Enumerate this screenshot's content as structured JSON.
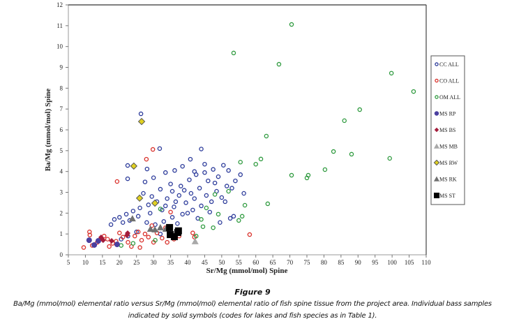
{
  "chart_data": {
    "type": "scatter",
    "title": "",
    "xlabel": "Sr/Mg (mmol/mol) Spine",
    "ylabel": "Ba/Mg (mmol/mol) Spine",
    "xlim": [
      5,
      110
    ],
    "ylim": [
      0,
      12
    ],
    "xticks": [
      5,
      10,
      15,
      20,
      25,
      30,
      35,
      40,
      45,
      50,
      55,
      60,
      65,
      70,
      75,
      80,
      85,
      90,
      95,
      100,
      105,
      110
    ],
    "yticks": [
      0,
      1,
      2,
      3,
      4,
      5,
      6,
      7,
      8,
      9,
      10,
      11,
      12
    ],
    "grid": false,
    "legend_position": "right",
    "series": [
      {
        "name": "CC ALL",
        "marker": "open-circle",
        "color": "#2b3a9a",
        "points": [
          [
            26.3,
            6.77
          ],
          [
            31.8,
            5.1
          ],
          [
            22.4,
            4.29
          ],
          [
            28.1,
            4.12
          ],
          [
            22.4,
            3.65
          ],
          [
            40.8,
            4.59
          ],
          [
            44.0,
            5.08
          ],
          [
            38.5,
            4.25
          ],
          [
            36.2,
            4.05
          ],
          [
            33.5,
            3.95
          ],
          [
            30.0,
            3.7
          ],
          [
            27.5,
            3.5
          ],
          [
            35.0,
            3.4
          ],
          [
            38.0,
            3.3
          ],
          [
            40.5,
            3.6
          ],
          [
            42.5,
            3.85
          ],
          [
            45.0,
            3.95
          ],
          [
            47.5,
            4.1
          ],
          [
            50.5,
            4.3
          ],
          [
            52.0,
            4.05
          ],
          [
            49.0,
            3.75
          ],
          [
            46.0,
            3.55
          ],
          [
            43.5,
            3.2
          ],
          [
            41.0,
            2.95
          ],
          [
            37.5,
            2.85
          ],
          [
            34.0,
            2.7
          ],
          [
            31.0,
            2.55
          ],
          [
            28.5,
            2.4
          ],
          [
            26.0,
            2.25
          ],
          [
            24.0,
            2.1
          ],
          [
            22.0,
            1.95
          ],
          [
            20.0,
            1.8
          ],
          [
            18.5,
            1.7
          ],
          [
            17.5,
            1.45
          ],
          [
            21.0,
            1.55
          ],
          [
            23.0,
            1.65
          ],
          [
            25.5,
            1.85
          ],
          [
            29.0,
            2.0
          ],
          [
            32.5,
            2.15
          ],
          [
            36.0,
            2.3
          ],
          [
            39.5,
            2.5
          ],
          [
            42.0,
            2.7
          ],
          [
            45.5,
            2.85
          ],
          [
            48.5,
            3.05
          ],
          [
            51.5,
            3.3
          ],
          [
            54.0,
            3.55
          ],
          [
            55.5,
            3.85
          ],
          [
            53.0,
            3.2
          ],
          [
            50.0,
            2.75
          ],
          [
            47.0,
            2.55
          ],
          [
            44.0,
            2.35
          ],
          [
            41.5,
            2.15
          ],
          [
            38.5,
            1.95
          ],
          [
            35.5,
            1.8
          ],
          [
            33.0,
            1.6
          ],
          [
            30.5,
            1.45
          ],
          [
            28.0,
            1.55
          ],
          [
            37.0,
            1.5
          ],
          [
            43.0,
            1.75
          ],
          [
            46.5,
            2.05
          ],
          [
            49.5,
            1.55
          ],
          [
            52.5,
            1.75
          ],
          [
            39.0,
            3.1
          ],
          [
            35.5,
            3.05
          ],
          [
            32.0,
            3.15
          ],
          [
            29.5,
            2.8
          ],
          [
            27.0,
            2.95
          ],
          [
            33.5,
            2.35
          ],
          [
            36.5,
            2.55
          ],
          [
            40.0,
            2.0
          ],
          [
            42.0,
            4.0
          ],
          [
            45.0,
            4.35
          ],
          [
            48.0,
            3.45
          ],
          [
            51.0,
            2.55
          ],
          [
            56.5,
            2.95
          ],
          [
            53.5,
            1.85
          ],
          [
            34.5,
            1.2
          ],
          [
            32.0,
            1.0
          ],
          [
            25.0,
            1.1
          ],
          [
            20.5,
            0.75
          ],
          [
            22.5,
            0.9
          ]
        ]
      },
      {
        "name": "CO ALL",
        "marker": "open-circle",
        "color": "#d9302a",
        "points": [
          [
            29.8,
            5.06
          ],
          [
            27.9,
            4.59
          ],
          [
            19.3,
            3.52
          ],
          [
            11.2,
            1.1
          ],
          [
            11.3,
            0.95
          ],
          [
            9.5,
            0.35
          ],
          [
            12.0,
            0.45
          ],
          [
            13.5,
            0.6
          ],
          [
            16.5,
            0.75
          ],
          [
            18.0,
            0.55
          ],
          [
            20.0,
            1.05
          ],
          [
            21.0,
            0.85
          ],
          [
            22.5,
            0.6
          ],
          [
            23.5,
            0.4
          ],
          [
            24.5,
            0.9
          ],
          [
            25.5,
            1.1
          ],
          [
            26.5,
            0.7
          ],
          [
            27.5,
            1.0
          ],
          [
            28.5,
            0.85
          ],
          [
            30.0,
            0.6
          ],
          [
            31.0,
            1.05
          ],
          [
            32.5,
            0.8
          ],
          [
            29.5,
            1.4
          ],
          [
            33.5,
            1.3
          ],
          [
            36.0,
            0.75
          ],
          [
            37.5,
            0.9
          ],
          [
            34.0,
            0.6
          ],
          [
            41.5,
            1.05
          ],
          [
            42.0,
            0.85
          ],
          [
            58.2,
            0.97
          ],
          [
            35.0,
            2.05
          ],
          [
            17.0,
            0.4
          ],
          [
            15.5,
            0.9
          ],
          [
            19.0,
            0.65
          ],
          [
            26.0,
            0.35
          ]
        ]
      },
      {
        "name": "OM ALL",
        "marker": "open-circle",
        "color": "#2e9a3e",
        "points": [
          [
            70.5,
            11.06
          ],
          [
            53.5,
            9.69
          ],
          [
            66.8,
            9.15
          ],
          [
            99.8,
            8.72
          ],
          [
            106.3,
            7.84
          ],
          [
            90.5,
            6.97
          ],
          [
            86.0,
            6.44
          ],
          [
            63.1,
            5.7
          ],
          [
            82.8,
            4.96
          ],
          [
            88.1,
            4.83
          ],
          [
            99.3,
            4.63
          ],
          [
            80.3,
            4.09
          ],
          [
            70.5,
            3.82
          ],
          [
            75.4,
            3.82
          ],
          [
            75.0,
            3.69
          ],
          [
            63.5,
            2.45
          ],
          [
            56.8,
            2.38
          ],
          [
            61.5,
            4.6
          ],
          [
            60.0,
            4.35
          ],
          [
            55.5,
            4.45
          ],
          [
            52.0,
            3.05
          ],
          [
            48.0,
            2.9
          ],
          [
            45.5,
            2.25
          ],
          [
            49.0,
            1.95
          ],
          [
            44.0,
            1.7
          ],
          [
            55.0,
            1.65
          ],
          [
            56.0,
            1.85
          ],
          [
            47.5,
            1.3
          ],
          [
            44.5,
            1.35
          ],
          [
            42.5,
            0.9
          ],
          [
            32.0,
            2.2
          ],
          [
            30.5,
            0.7
          ],
          [
            24.0,
            0.55
          ],
          [
            20.5,
            0.45
          ]
        ]
      },
      {
        "name": "MS RP",
        "marker": "filled-circle",
        "color": "#4b3f9f",
        "points": [
          [
            11.1,
            0.7
          ],
          [
            12.6,
            0.47
          ],
          [
            13.8,
            0.67
          ],
          [
            19.3,
            0.5
          ]
        ]
      },
      {
        "name": "MS BS",
        "marker": "filled-diamond",
        "color": "#a31b3a",
        "points": [
          [
            14.6,
            0.84
          ],
          [
            15.2,
            0.7
          ],
          [
            17.7,
            0.67
          ],
          [
            22.2,
            0.94
          ],
          [
            22.4,
            1.04
          ]
        ]
      },
      {
        "name": "MS MB",
        "marker": "filled-triangle",
        "color": "#a9a9a9",
        "points": [
          [
            42.2,
            0.64
          ]
        ]
      },
      {
        "name": "MS RW",
        "marker": "filled-diamond-outlined",
        "color": "#e0d020",
        "points": [
          [
            26.5,
            6.4
          ],
          [
            24.2,
            4.26
          ],
          [
            25.9,
            2.72
          ],
          [
            30.4,
            2.48
          ]
        ]
      },
      {
        "name": "MS RK",
        "marker": "filled-triangle",
        "color": "#707070",
        "points": [
          [
            23.8,
            1.74
          ],
          [
            29.1,
            1.24
          ],
          [
            30.4,
            1.21
          ],
          [
            32.0,
            1.31
          ],
          [
            33.6,
            1.24
          ]
        ]
      },
      {
        "name": "MS ST",
        "marker": "filled-square",
        "color": "#000000",
        "points": [
          [
            34.7,
            1.31
          ],
          [
            37.1,
            1.07
          ],
          [
            34.9,
            0.97
          ],
          [
            36.1,
            0.87
          ],
          [
            37.3,
            1.15
          ]
        ]
      }
    ]
  },
  "caption": {
    "figure_title": "Figure 9",
    "text": "Ba/Mg (mmol/mol) elemental ratio versus Sr/Mg (mmol/mol) elemental ratio of fish spine tissue from the project area. Individual bass samples indicated by solid symbols (codes for lakes and fish species as in Table 1)."
  }
}
